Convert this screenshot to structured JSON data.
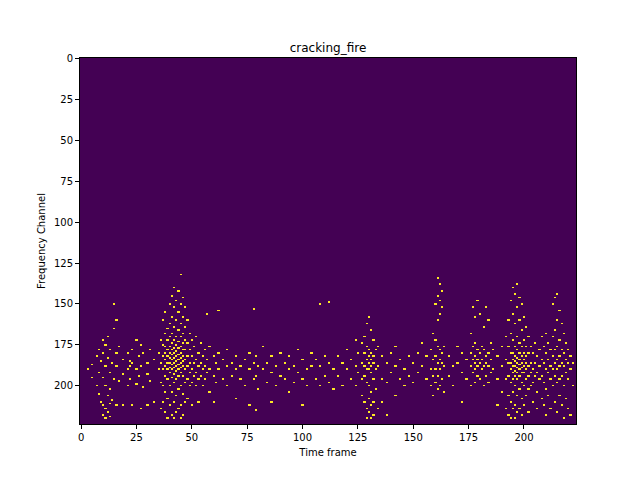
{
  "chart_data": {
    "type": "heatmap",
    "title": "cracking_fire",
    "x_label": "Time frame",
    "y_label": "Frequency Channel",
    "n_frames": 224,
    "n_channels": 224,
    "xlim": [
      -0.5,
      223.5
    ],
    "ylim": [
      223.5,
      -0.5
    ],
    "xticks": [
      0,
      25,
      50,
      75,
      100,
      125,
      150,
      175,
      200
    ],
    "yticks": [
      0,
      25,
      50,
      75,
      100,
      125,
      150,
      175,
      200
    ],
    "color": "Viridis",
    "zlim": [
      0,
      1
    ],
    "value": 1,
    "spikes": [
      {
        "t": 3,
        "ch": [
          190
        ]
      },
      {
        "t": 5,
        "ch": [
          187,
          195
        ]
      },
      {
        "t": 7,
        "ch": [
          182,
          200
        ]
      },
      {
        "t": 8,
        "ch": [
          178,
          192,
          205
        ]
      },
      {
        "t": 9,
        "ch": [
          185,
          210
        ]
      },
      {
        "t": 10,
        "ch": [
          172,
          180,
          195,
          212,
          218
        ]
      },
      {
        "t": 11,
        "ch": [
          175,
          188,
          200,
          214,
          220
        ]
      },
      {
        "t": 12,
        "ch": [
          170,
          183,
          206,
          216
        ]
      },
      {
        "t": 13,
        "ch": [
          178,
          192,
          202,
          211,
          219
        ]
      },
      {
        "t": 14,
        "ch": [
          186,
          209
        ]
      },
      {
        "t": 15,
        "ch": [
          150,
          165,
          196
        ]
      },
      {
        "t": 16,
        "ch": [
          160,
          180,
          188,
          212
        ]
      },
      {
        "t": 17,
        "ch": [
          176,
          197
        ]
      },
      {
        "t": 19,
        "ch": [
          184,
          193,
          212
        ]
      },
      {
        "t": 21,
        "ch": [
          180,
          190,
          200
        ]
      },
      {
        "t": 22,
        "ch": [
          185,
          188,
          196
        ]
      },
      {
        "t": 23,
        "ch": [
          178,
          186,
          212
        ]
      },
      {
        "t": 25,
        "ch": [
          172,
          190,
          199
        ]
      },
      {
        "t": 26,
        "ch": [
          182,
          194
        ]
      },
      {
        "t": 27,
        "ch": [
          175,
          188,
          214
        ]
      },
      {
        "t": 28,
        "ch": [
          180,
          201
        ]
      },
      {
        "t": 30,
        "ch": [
          186,
          193,
          212
        ]
      },
      {
        "t": 31,
        "ch": [
          178,
          197
        ]
      },
      {
        "t": 33,
        "ch": [
          184,
          210
        ]
      },
      {
        "t": 35,
        "ch": [
          180,
          190
        ]
      },
      {
        "t": 36,
        "ch": [
          172,
          186,
          198,
          214
        ]
      },
      {
        "t": 37,
        "ch": [
          160,
          175,
          182,
          190,
          200,
          210
        ]
      },
      {
        "t": 38,
        "ch": [
          155,
          168,
          176,
          180,
          184,
          188,
          194,
          204,
          216
        ]
      },
      {
        "t": 39,
        "ch": [
          165,
          172,
          178,
          182,
          186,
          190,
          196,
          208,
          220
        ]
      },
      {
        "t": 40,
        "ch": [
          150,
          162,
          170,
          176,
          180,
          183,
          186,
          189,
          192,
          200,
          212
        ]
      },
      {
        "t": 41,
        "ch": [
          145,
          158,
          168,
          174,
          178,
          181,
          184,
          187,
          190,
          195,
          204,
          218
        ]
      },
      {
        "t": 42,
        "ch": [
          140,
          152,
          164,
          172,
          177,
          180,
          183,
          186,
          189,
          193,
          198,
          210,
          220
        ]
      },
      {
        "t": 43,
        "ch": [
          148,
          160,
          170,
          175,
          179,
          182,
          185,
          188,
          191,
          196,
          206,
          216
        ]
      },
      {
        "t": 44,
        "ch": [
          142,
          155,
          166,
          173,
          177,
          181,
          184,
          187,
          190,
          194,
          202,
          214
        ]
      },
      {
        "t": 45,
        "ch": [
          132,
          150,
          162,
          170,
          176,
          180,
          183,
          186,
          189,
          192,
          200,
          212,
          220
        ]
      },
      {
        "t": 46,
        "ch": [
          146,
          158,
          168,
          174,
          178,
          182,
          185,
          188,
          194,
          205,
          218
        ]
      },
      {
        "t": 47,
        "ch": [
          152,
          164,
          172,
          178,
          184,
          190,
          198,
          210
        ]
      },
      {
        "t": 48,
        "ch": [
          160,
          174,
          182,
          188,
          196,
          208
        ]
      },
      {
        "t": 49,
        "ch": [
          168,
          178,
          186,
          192,
          200
        ]
      },
      {
        "t": 50,
        "ch": [
          172,
          182,
          190,
          198,
          212
        ]
      },
      {
        "t": 51,
        "ch": [
          176,
          186,
          194
        ]
      },
      {
        "t": 52,
        "ch": [
          170,
          184,
          192,
          200
        ]
      },
      {
        "t": 53,
        "ch": [
          180,
          188,
          196,
          210
        ]
      },
      {
        "t": 54,
        "ch": [
          174,
          186,
          194
        ]
      },
      {
        "t": 55,
        "ch": [
          182,
          190,
          200
        ]
      },
      {
        "t": 56,
        "ch": [
          178,
          188,
          196
        ]
      },
      {
        "t": 57,
        "ch": [
          156,
          184,
          192
        ]
      },
      {
        "t": 58,
        "ch": [
          176,
          190,
          204
        ]
      },
      {
        "t": 60,
        "ch": [
          182,
          194,
          210
        ]
      },
      {
        "t": 61,
        "ch": [
          186,
          198
        ]
      },
      {
        "t": 62,
        "ch": [
          154,
          180,
          190
        ]
      },
      {
        "t": 64,
        "ch": [
          184,
          196
        ]
      },
      {
        "t": 66,
        "ch": [
          178,
          188,
          200
        ]
      },
      {
        "t": 68,
        "ch": [
          186,
          194
        ]
      },
      {
        "t": 70,
        "ch": [
          182,
          190,
          208
        ]
      },
      {
        "t": 72,
        "ch": [
          188,
          196
        ]
      },
      {
        "t": 74,
        "ch": [
          184,
          200
        ]
      },
      {
        "t": 76,
        "ch": [
          180,
          190,
          212
        ]
      },
      {
        "t": 78,
        "ch": [
          153,
          186,
          196
        ]
      },
      {
        "t": 79,
        "ch": [
          182,
          194,
          215
        ]
      },
      {
        "t": 80,
        "ch": [
          188,
          202
        ]
      },
      {
        "t": 82,
        "ch": [
          176,
          190
        ]
      },
      {
        "t": 84,
        "ch": [
          186,
          198
        ]
      },
      {
        "t": 86,
        "ch": [
          182,
          192,
          210
        ]
      },
      {
        "t": 88,
        "ch": [
          188,
          200
        ]
      },
      {
        "t": 90,
        "ch": [
          180,
          194
        ]
      },
      {
        "t": 92,
        "ch": [
          186,
          196
        ]
      },
      {
        "t": 94,
        "ch": [
          182,
          190,
          204
        ]
      },
      {
        "t": 96,
        "ch": [
          188,
          198
        ]
      },
      {
        "t": 98,
        "ch": [
          178,
          192
        ]
      },
      {
        "t": 100,
        "ch": [
          184,
          196,
          212
        ]
      },
      {
        "t": 102,
        "ch": [
          190,
          200
        ]
      },
      {
        "t": 104,
        "ch": [
          180,
          188
        ]
      },
      {
        "t": 106,
        "ch": [
          184,
          196
        ]
      },
      {
        "t": 108,
        "ch": [
          150,
          188,
          200
        ]
      },
      {
        "t": 110,
        "ch": [
          182,
          194
        ]
      },
      {
        "t": 112,
        "ch": [
          149,
          186,
          198
        ]
      },
      {
        "t": 114,
        "ch": [
          190,
          202
        ]
      },
      {
        "t": 116,
        "ch": [
          182,
          194
        ]
      },
      {
        "t": 118,
        "ch": [
          186,
          200
        ]
      },
      {
        "t": 120,
        "ch": [
          178,
          190
        ]
      },
      {
        "t": 122,
        "ch": [
          184,
          196
        ]
      },
      {
        "t": 124,
        "ch": [
          172,
          188,
          200
        ]
      },
      {
        "t": 125,
        "ch": [
          180,
          192
        ]
      },
      {
        "t": 127,
        "ch": [
          174,
          186,
          196,
          206
        ]
      },
      {
        "t": 128,
        "ch": [
          170,
          180,
          188,
          194,
          210
        ]
      },
      {
        "t": 129,
        "ch": [
          162,
          176,
          184,
          190,
          198,
          214,
          220
        ]
      },
      {
        "t": 130,
        "ch": [
          158,
          178,
          182,
          186,
          190,
          200,
          208,
          216
        ]
      },
      {
        "t": 131,
        "ch": [
          166,
          180,
          184,
          188,
          192,
          204,
          212,
          220
        ]
      },
      {
        "t": 132,
        "ch": [
          172,
          182,
          186,
          196,
          210,
          218
        ]
      },
      {
        "t": 133,
        "ch": [
          178,
          190,
          202
        ]
      },
      {
        "t": 134,
        "ch": [
          176,
          188,
          214
        ]
      },
      {
        "t": 136,
        "ch": [
          182,
          196,
          210
        ]
      },
      {
        "t": 138,
        "ch": [
          186,
          198,
          218
        ]
      },
      {
        "t": 140,
        "ch": [
          180,
          192
        ]
      },
      {
        "t": 142,
        "ch": [
          176,
          188,
          206
        ]
      },
      {
        "t": 144,
        "ch": [
          184,
          196
        ]
      },
      {
        "t": 146,
        "ch": [
          190,
          200
        ]
      },
      {
        "t": 148,
        "ch": [
          182,
          194
        ]
      },
      {
        "t": 150,
        "ch": [
          186,
          198
        ]
      },
      {
        "t": 152,
        "ch": [
          180,
          192
        ]
      },
      {
        "t": 154,
        "ch": [
          174,
          188
        ]
      },
      {
        "t": 156,
        "ch": [
          182,
          196
        ]
      },
      {
        "t": 158,
        "ch": [
          178,
          190,
          200
        ]
      },
      {
        "t": 159,
        "ch": [
          168,
          184,
          194,
          206
        ]
      },
      {
        "t": 160,
        "ch": [
          150,
          172,
          182,
          190,
          198
        ]
      },
      {
        "t": 161,
        "ch": [
          134,
          145,
          160,
          176,
          186,
          194,
          202
        ]
      },
      {
        "t": 162,
        "ch": [
          138,
          148,
          156,
          178,
          184,
          190,
          200
        ]
      },
      {
        "t": 163,
        "ch": [
          142,
          152,
          180,
          186,
          196
        ]
      },
      {
        "t": 164,
        "ch": [
          176,
          188,
          204
        ]
      },
      {
        "t": 166,
        "ch": [
          182,
          194
        ]
      },
      {
        "t": 168,
        "ch": [
          188,
          200
        ]
      },
      {
        "t": 170,
        "ch": [
          176,
          186
        ]
      },
      {
        "t": 172,
        "ch": [
          180,
          192,
          210
        ]
      },
      {
        "t": 174,
        "ch": [
          184,
          196
        ]
      },
      {
        "t": 176,
        "ch": [
          168,
          180,
          188,
          200
        ]
      },
      {
        "t": 177,
        "ch": [
          152,
          176,
          184,
          192
        ]
      },
      {
        "t": 178,
        "ch": [
          158,
          174,
          182,
          186,
          190,
          198
        ]
      },
      {
        "t": 179,
        "ch": [
          148,
          178,
          184,
          188,
          194
        ]
      },
      {
        "t": 180,
        "ch": [
          156,
          180,
          186,
          196
        ]
      },
      {
        "t": 181,
        "ch": [
          176,
          184,
          190
        ]
      },
      {
        "t": 182,
        "ch": [
          164,
          178,
          188,
          200
        ]
      },
      {
        "t": 183,
        "ch": [
          152,
          182,
          186,
          194
        ]
      },
      {
        "t": 184,
        "ch": [
          160,
          180,
          188,
          198
        ]
      },
      {
        "t": 185,
        "ch": [
          174,
          184,
          192
        ]
      },
      {
        "t": 186,
        "ch": [
          178,
          190
        ]
      },
      {
        "t": 188,
        "ch": [
          182,
          196,
          212
        ]
      },
      {
        "t": 190,
        "ch": [
          176,
          188,
          204
        ]
      },
      {
        "t": 192,
        "ch": [
          170,
          184,
          196,
          214
        ]
      },
      {
        "t": 193,
        "ch": [
          160,
          176,
          186,
          194,
          206,
          218
        ]
      },
      {
        "t": 194,
        "ch": [
          148,
          168,
          180,
          186,
          190,
          198,
          210,
          220
        ]
      },
      {
        "t": 195,
        "ch": [
          140,
          156,
          172,
          180,
          184,
          188,
          192,
          196,
          204,
          214
        ]
      },
      {
        "t": 196,
        "ch": [
          144,
          162,
          176,
          182,
          185,
          188,
          191,
          194,
          200,
          212,
          220
        ]
      },
      {
        "t": 197,
        "ch": [
          138,
          152,
          170,
          178,
          183,
          186,
          189,
          192,
          196,
          206,
          216
        ]
      },
      {
        "t": 198,
        "ch": [
          146,
          160,
          174,
          180,
          184,
          187,
          190,
          194,
          202,
          214
        ]
      },
      {
        "t": 199,
        "ch": [
          150,
          166,
          176,
          182,
          186,
          189,
          192,
          198,
          208,
          218
        ]
      },
      {
        "t": 200,
        "ch": [
          158,
          172,
          180,
          184,
          188,
          192,
          200,
          212
        ]
      },
      {
        "t": 201,
        "ch": [
          164,
          176,
          182,
          186,
          190,
          196,
          206
        ]
      },
      {
        "t": 202,
        "ch": [
          170,
          180,
          188,
          194,
          202,
          216
        ]
      },
      {
        "t": 203,
        "ch": [
          176,
          186,
          192,
          200
        ]
      },
      {
        "t": 204,
        "ch": [
          180,
          190,
          198,
          210
        ]
      },
      {
        "t": 205,
        "ch": [
          174,
          186,
          194
        ]
      },
      {
        "t": 206,
        "ch": [
          182,
          192,
          204,
          214
        ]
      },
      {
        "t": 207,
        "ch": [
          178,
          188,
          196
        ]
      },
      {
        "t": 208,
        "ch": [
          170,
          184,
          194,
          208
        ]
      },
      {
        "t": 209,
        "ch": [
          176,
          186,
          198,
          212
        ]
      },
      {
        "t": 210,
        "ch": [
          168,
          180,
          190,
          202,
          218
        ]
      },
      {
        "t": 211,
        "ch": [
          174,
          184,
          192,
          206
        ]
      },
      {
        "t": 212,
        "ch": [
          178,
          188,
          196,
          214
        ]
      },
      {
        "t": 213,
        "ch": [
          150,
          170,
          182,
          190,
          200
        ]
      },
      {
        "t": 214,
        "ch": [
          146,
          166,
          178,
          186,
          194,
          210
        ]
      },
      {
        "t": 215,
        "ch": [
          144,
          160,
          176,
          184,
          190,
          198,
          216
        ]
      },
      {
        "t": 216,
        "ch": [
          154,
          172,
          182,
          188,
          196,
          206
        ]
      },
      {
        "t": 217,
        "ch": [
          162,
          178,
          186,
          194,
          212
        ]
      },
      {
        "t": 218,
        "ch": [
          168,
          180,
          188,
          200,
          220
        ]
      },
      {
        "t": 219,
        "ch": [
          174,
          184,
          192,
          208
        ]
      },
      {
        "t": 220,
        "ch": [
          178,
          186,
          196,
          214
        ]
      },
      {
        "t": 221,
        "ch": [
          182,
          190,
          218
        ]
      },
      {
        "t": 222,
        "ch": [
          186,
          200
        ]
      }
    ]
  }
}
